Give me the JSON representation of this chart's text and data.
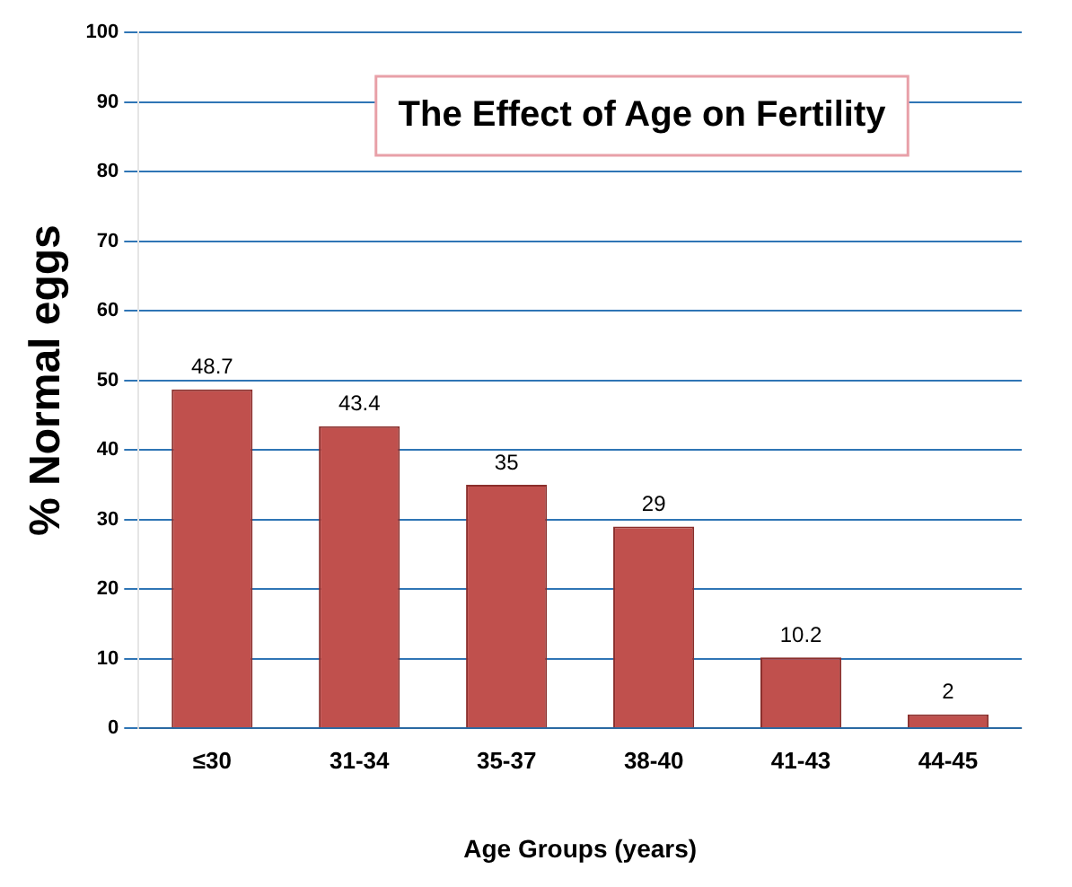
{
  "chart_data": {
    "type": "bar",
    "title": "The Effect of Age on Fertility",
    "xlabel": "Age Groups (years)",
    "ylabel": "% Normal eggs",
    "categories": [
      "≤30",
      "31-34",
      "35-37",
      "38-40",
      "41-43",
      "44-45"
    ],
    "values": [
      48.7,
      43.4,
      35,
      29,
      10.2,
      2
    ],
    "color": "#c0504d",
    "ylim": [
      0,
      100
    ],
    "yticks": [
      0,
      10,
      20,
      30,
      40,
      50,
      60,
      70,
      80,
      90,
      100
    ],
    "grid": "y",
    "data_labels": true
  }
}
